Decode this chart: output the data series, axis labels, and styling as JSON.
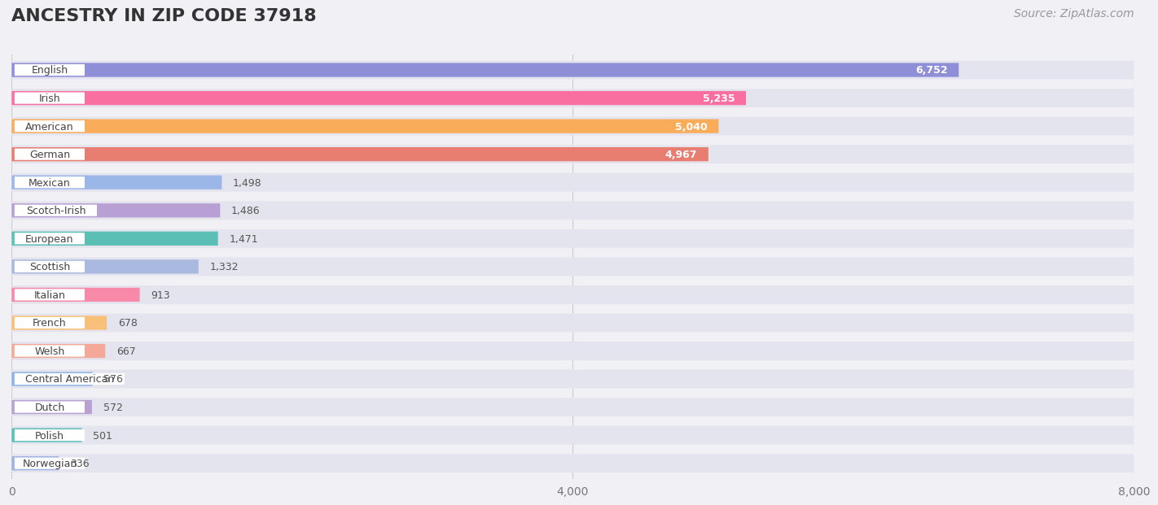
{
  "title": "ANCESTRY IN ZIP CODE 37918",
  "source": "Source: ZipAtlas.com",
  "categories": [
    "English",
    "Irish",
    "American",
    "German",
    "Mexican",
    "Scotch-Irish",
    "European",
    "Scottish",
    "Italian",
    "French",
    "Welsh",
    "Central American",
    "Dutch",
    "Polish",
    "Norwegian"
  ],
  "values": [
    6752,
    5235,
    5040,
    4967,
    1498,
    1486,
    1471,
    1332,
    913,
    678,
    667,
    576,
    572,
    501,
    336
  ],
  "bar_colors": [
    "#8f8fd8",
    "#f86fa0",
    "#f9ac5a",
    "#e87d72",
    "#9ab7e8",
    "#b89fd4",
    "#5bbfb5",
    "#a9b9e0",
    "#f889a8",
    "#f8c07a",
    "#f4a898",
    "#8eb5e4",
    "#b8a0d2",
    "#5bbfb8",
    "#a0b3df"
  ],
  "xlim": [
    0,
    8000
  ],
  "xticks": [
    0,
    4000,
    8000
  ],
  "background_color": "#f0f0f5",
  "row_bg_color": "#e8e8f0",
  "title_fontsize": 16,
  "source_fontsize": 10
}
